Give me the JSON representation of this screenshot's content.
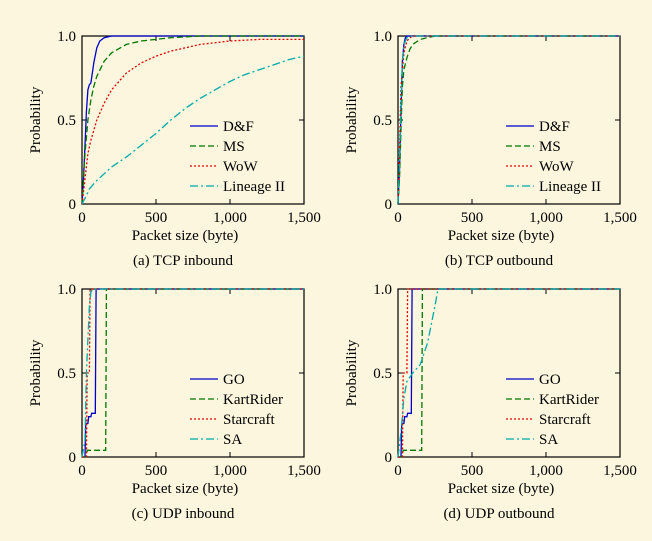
{
  "colors": {
    "background": "#fbf6dd",
    "axes": "#000000",
    "plot_area": "#fbf6dd"
  },
  "chart_data": [
    {
      "type": "line",
      "caption": "(a) TCP inbound",
      "xlabel": "Packet size (byte)",
      "ylabel": "Probability",
      "xlim": [
        0,
        1500
      ],
      "ylim": [
        0,
        1
      ],
      "xticks": [
        0,
        500,
        1000,
        1500
      ],
      "xtick_labels": [
        "0",
        "500",
        "1,000",
        "1,500"
      ],
      "yticks": [
        0,
        0.5,
        1
      ],
      "ytick_labels": [
        "0",
        "0.5",
        "1.0"
      ],
      "grid": false,
      "legend_position": "bottom-right",
      "series": [
        {
          "name": "D&F",
          "color": "#0000cc",
          "dash": "solid",
          "x": [
            0,
            10,
            20,
            30,
            40,
            50,
            60,
            80,
            100,
            120,
            150,
            200,
            1500
          ],
          "y": [
            0,
            0.15,
            0.35,
            0.55,
            0.68,
            0.71,
            0.72,
            0.84,
            0.93,
            0.97,
            0.99,
            1.0,
            1.0
          ]
        },
        {
          "name": "MS",
          "color": "#007700",
          "dash": "6,3",
          "x": [
            0,
            20,
            40,
            60,
            80,
            100,
            150,
            200,
            300,
            400,
            600,
            800,
            1000,
            1500
          ],
          "y": [
            0,
            0.3,
            0.5,
            0.62,
            0.7,
            0.76,
            0.85,
            0.9,
            0.95,
            0.97,
            0.99,
            1.0,
            1.0,
            1.0
          ]
        },
        {
          "name": "WoW",
          "color": "#dd0000",
          "dash": "2,2",
          "x": [
            0,
            20,
            40,
            60,
            100,
            150,
            200,
            300,
            400,
            500,
            600,
            800,
            1000,
            1200,
            1500
          ],
          "y": [
            0,
            0.15,
            0.3,
            0.38,
            0.5,
            0.6,
            0.68,
            0.78,
            0.84,
            0.88,
            0.91,
            0.95,
            0.97,
            0.98,
            0.98
          ]
        },
        {
          "name": "Lineage II",
          "color": "#00aaaa",
          "dash": "8,3,2,3",
          "x": [
            0,
            30,
            50,
            80,
            100,
            150,
            200,
            300,
            400,
            500,
            600,
            700,
            800,
            900,
            1000,
            1100,
            1200,
            1300,
            1400,
            1500
          ],
          "y": [
            0,
            0.05,
            0.09,
            0.12,
            0.14,
            0.18,
            0.22,
            0.28,
            0.35,
            0.42,
            0.5,
            0.57,
            0.63,
            0.68,
            0.73,
            0.77,
            0.8,
            0.83,
            0.86,
            0.88
          ]
        }
      ]
    },
    {
      "type": "line",
      "caption": "(b) TCP outbound",
      "xlabel": "Packet size (byte)",
      "ylabel": "Probability",
      "xlim": [
        0,
        1500
      ],
      "ylim": [
        0,
        1
      ],
      "xticks": [
        0,
        500,
        1000,
        1500
      ],
      "xtick_labels": [
        "0",
        "500",
        "1,000",
        "1,500"
      ],
      "yticks": [
        0,
        0.5,
        1
      ],
      "ytick_labels": [
        "0",
        "0.5",
        "1.0"
      ],
      "grid": false,
      "legend_position": "bottom-right",
      "series": [
        {
          "name": "D&F",
          "color": "#0000cc",
          "dash": "solid",
          "x": [
            0,
            10,
            20,
            30,
            40,
            50,
            60,
            1500
          ],
          "y": [
            0,
            0.2,
            0.55,
            0.85,
            0.95,
            0.99,
            1.0,
            1.0
          ]
        },
        {
          "name": "MS",
          "color": "#007700",
          "dash": "6,3",
          "x": [
            0,
            10,
            20,
            30,
            40,
            60,
            80,
            100,
            150,
            200,
            250,
            300,
            1500
          ],
          "y": [
            0,
            0.15,
            0.45,
            0.7,
            0.8,
            0.87,
            0.92,
            0.95,
            0.98,
            0.99,
            1.0,
            1.0,
            1.0
          ]
        },
        {
          "name": "WoW",
          "color": "#dd0000",
          "dash": "2,2",
          "x": [
            0,
            10,
            20,
            40,
            60,
            80,
            100,
            1500
          ],
          "y": [
            0,
            0.3,
            0.7,
            0.9,
            0.97,
            0.99,
            1.0,
            1.0
          ]
        },
        {
          "name": "Lineage II",
          "color": "#00aaaa",
          "dash": "8,3,2,3",
          "x": [
            0,
            10,
            20,
            30,
            40,
            60,
            100,
            1500
          ],
          "y": [
            0,
            0.25,
            0.6,
            0.85,
            0.95,
            0.99,
            1.0,
            1.0
          ]
        }
      ]
    },
    {
      "type": "line",
      "caption": "(c) UDP inbound",
      "xlabel": "Packet size (byte)",
      "ylabel": "Probability",
      "xlim": [
        0,
        1500
      ],
      "ylim": [
        0,
        1
      ],
      "xticks": [
        0,
        500,
        1000,
        1500
      ],
      "xtick_labels": [
        "0",
        "500",
        "1,000",
        "1,500"
      ],
      "yticks": [
        0,
        0.5,
        1
      ],
      "ytick_labels": [
        "0",
        "0.5",
        "1.0"
      ],
      "grid": false,
      "legend_position": "bottom-right",
      "series": [
        {
          "name": "GO",
          "color": "#0000cc",
          "dash": "solid",
          "x": [
            0,
            20,
            25,
            40,
            45,
            60,
            65,
            90,
            95,
            1500
          ],
          "y": [
            0,
            0,
            0.2,
            0.2,
            0.24,
            0.24,
            0.26,
            0.26,
            1.0,
            1.0
          ]
        },
        {
          "name": "KartRider",
          "color": "#007700",
          "dash": "6,3",
          "x": [
            0,
            30,
            35,
            120,
            125,
            160,
            165,
            1500
          ],
          "y": [
            0,
            0,
            0.04,
            0.04,
            0.04,
            0.04,
            1.0,
            1.0
          ]
        },
        {
          "name": "Starcraft",
          "color": "#dd0000",
          "dash": "2,2",
          "x": [
            0,
            30,
            35,
            50,
            55,
            1500
          ],
          "y": [
            0,
            0,
            0.5,
            0.5,
            1.0,
            1.0
          ]
        },
        {
          "name": "SA",
          "color": "#00aaaa",
          "dash": "8,3,2,3",
          "x": [
            0,
            20,
            30,
            50,
            60,
            70,
            1500
          ],
          "y": [
            0,
            0.1,
            0.5,
            0.9,
            0.98,
            1.0,
            1.0
          ]
        }
      ]
    },
    {
      "type": "line",
      "caption": "(d) UDP outbound",
      "xlabel": "Packet size (byte)",
      "ylabel": "Probability",
      "xlim": [
        0,
        1500
      ],
      "ylim": [
        0,
        1
      ],
      "xticks": [
        0,
        500,
        1000,
        1500
      ],
      "xtick_labels": [
        "0",
        "500",
        "1,000",
        "1,500"
      ],
      "yticks": [
        0,
        0.5,
        1
      ],
      "ytick_labels": [
        "0",
        "0.5",
        "1.0"
      ],
      "grid": false,
      "legend_position": "bottom-right",
      "series": [
        {
          "name": "GO",
          "color": "#0000cc",
          "dash": "solid",
          "x": [
            0,
            20,
            25,
            40,
            45,
            60,
            65,
            90,
            95,
            1500
          ],
          "y": [
            0,
            0,
            0.2,
            0.2,
            0.24,
            0.24,
            0.26,
            0.26,
            1.0,
            1.0
          ]
        },
        {
          "name": "KartRider",
          "color": "#007700",
          "dash": "6,3",
          "x": [
            0,
            30,
            35,
            120,
            125,
            160,
            165,
            1500
          ],
          "y": [
            0,
            0,
            0.04,
            0.04,
            0.04,
            0.04,
            1.0,
            1.0
          ]
        },
        {
          "name": "Starcraft",
          "color": "#dd0000",
          "dash": "2,2",
          "x": [
            0,
            30,
            35,
            60,
            65,
            1500
          ],
          "y": [
            0,
            0,
            0.5,
            0.5,
            1.0,
            1.0
          ]
        },
        {
          "name": "SA",
          "color": "#00aaaa",
          "dash": "8,3,2,3",
          "x": [
            0,
            20,
            40,
            60,
            100,
            150,
            200,
            250,
            270,
            1500
          ],
          "y": [
            0,
            0.15,
            0.35,
            0.45,
            0.5,
            0.55,
            0.68,
            0.9,
            1.0,
            1.0
          ]
        }
      ]
    }
  ]
}
